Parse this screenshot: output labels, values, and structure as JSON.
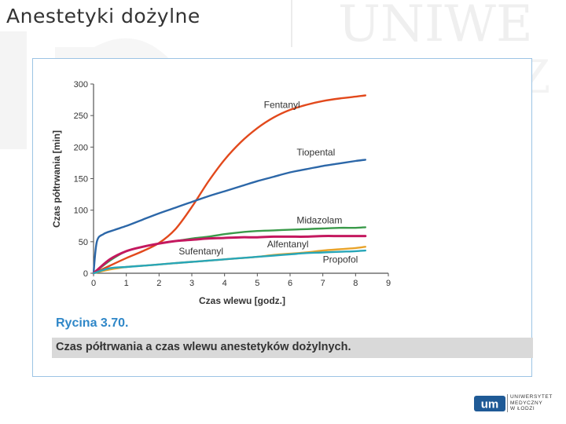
{
  "slide": {
    "title": "Anestetyki dożylne"
  },
  "watermark": {
    "text": "UNIWE",
    "text2": "MEDYCZ"
  },
  "figure": {
    "number": "Rycina 3.70.",
    "caption": "Czas półtrwania a czas wlewu anestetyków dożylnych."
  },
  "logo": {
    "mark": "um",
    "lines": [
      "UNIWERSYTET",
      "MEDYCZNY",
      "W ŁODZI"
    ]
  },
  "chart_data": {
    "type": "line",
    "title": "",
    "xlabel": "Czas wlewu [godz.]",
    "ylabel": "Czas półtrwania [min]",
    "xlim": [
      0,
      9
    ],
    "ylim": [
      0,
      300
    ],
    "xticks": [
      0,
      1,
      2,
      3,
      4,
      5,
      6,
      7,
      8,
      9
    ],
    "yticks": [
      0,
      50,
      100,
      150,
      200,
      250,
      300
    ],
    "grid": false,
    "legend": "inline labels",
    "series": [
      {
        "name": "Fentanyl",
        "color": "#e2491c",
        "x": [
          0,
          0.5,
          1,
          1.5,
          2,
          2.5,
          3,
          3.5,
          4,
          4.5,
          5,
          5.5,
          6,
          6.5,
          7,
          7.5,
          8,
          8.3
        ],
        "y": [
          0,
          12,
          24,
          35,
          48,
          70,
          105,
          145,
          180,
          208,
          230,
          247,
          259,
          267,
          273,
          277,
          280,
          282
        ]
      },
      {
        "name": "Tiopental",
        "color": "#2c67a8",
        "x": [
          0,
          0.1,
          0.3,
          0.6,
          1,
          1.5,
          2,
          2.5,
          3,
          3.5,
          4,
          4.5,
          5,
          5.5,
          6,
          6.5,
          7,
          7.5,
          8,
          8.3
        ],
        "y": [
          0,
          50,
          62,
          68,
          75,
          85,
          95,
          104,
          113,
          122,
          130,
          138,
          146,
          153,
          160,
          165,
          170,
          174,
          178,
          180
        ]
      },
      {
        "name": "Midazolam",
        "color": "#3a9a4a",
        "x": [
          0,
          0.5,
          1,
          1.5,
          2,
          2.5,
          3,
          3.5,
          4,
          4.5,
          5,
          5.5,
          6,
          6.5,
          7,
          7.5,
          8,
          8.3
        ],
        "y": [
          0,
          20,
          35,
          42,
          47,
          51,
          55,
          58,
          62,
          65,
          67,
          68,
          69,
          70,
          71,
          72,
          72,
          73
        ]
      },
      {
        "name": "Alfentanyl",
        "color": "#c4185f",
        "x": [
          0,
          0.5,
          1,
          1.5,
          2,
          2.5,
          3,
          3.5,
          4,
          4.5,
          5,
          5.5,
          6,
          6.5,
          7,
          7.5,
          8,
          8.3
        ],
        "y": [
          0,
          22,
          35,
          42,
          47,
          51,
          53,
          55,
          56,
          57,
          57,
          58,
          58,
          58,
          59,
          59,
          59,
          59
        ]
      },
      {
        "name": "Sufentanyl",
        "color": "#e8a32a",
        "x": [
          0,
          0.5,
          1,
          1.5,
          2,
          2.5,
          3,
          3.5,
          4,
          4.5,
          5,
          5.5,
          6,
          6.5,
          7,
          7.5,
          8,
          8.3
        ],
        "y": [
          0,
          6,
          10,
          12,
          14,
          16,
          18,
          20,
          22,
          24,
          26,
          29,
          31,
          33,
          36,
          38,
          40,
          42
        ]
      },
      {
        "name": "Propofol",
        "color": "#27a6b8",
        "x": [
          0,
          0.5,
          1,
          1.5,
          2,
          2.5,
          3,
          3.5,
          4,
          4.5,
          5,
          5.5,
          6,
          6.5,
          7,
          7.5,
          8,
          8.3
        ],
        "y": [
          0,
          8,
          10,
          12,
          14,
          16,
          18,
          20,
          22,
          24,
          26,
          28,
          30,
          32,
          33,
          34,
          35,
          36
        ]
      }
    ],
    "labels": [
      {
        "text": "Fentanyl",
        "x": 5.2,
        "y": 262,
        "color": "#333333"
      },
      {
        "text": "Tiopental",
        "x": 6.2,
        "y": 187,
        "color": "#333333"
      },
      {
        "text": "Midazolam",
        "x": 6.2,
        "y": 79,
        "color": "#333333"
      },
      {
        "text": "Alfentanyl",
        "x": 5.3,
        "y": 41,
        "color": "#333333"
      },
      {
        "text": "Sufentanyl",
        "x": 2.6,
        "y": 30,
        "color": "#333333"
      },
      {
        "text": "Propofol",
        "x": 7.0,
        "y": 17,
        "color": "#333333"
      }
    ]
  }
}
